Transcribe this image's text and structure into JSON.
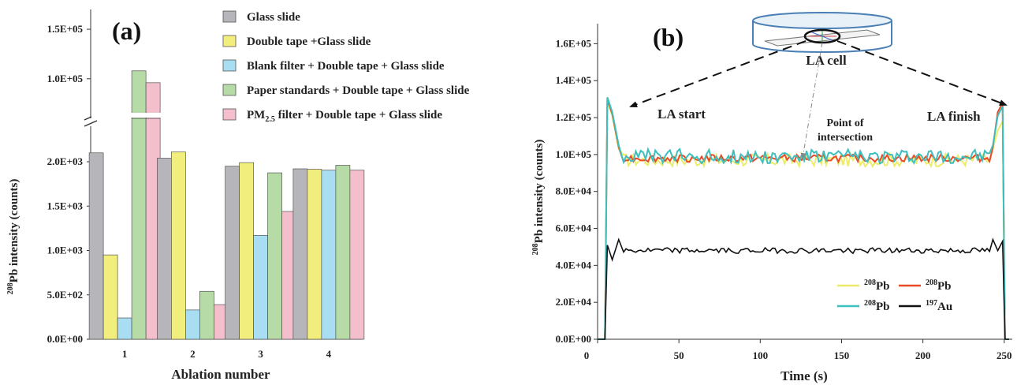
{
  "chart_data": [
    {
      "type": "bar",
      "panel_label": "(a)",
      "xlabel": "Ablation  number",
      "ylabel_sup": "208",
      "ylabel_main": "Pb intensity (counts)",
      "categories": [
        "1",
        "2",
        "3",
        "4"
      ],
      "axis_break": true,
      "lower_axis": {
        "ylim": [
          0,
          2400
        ],
        "ticks": [
          0,
          500,
          1000,
          1500,
          2000
        ],
        "tick_labels": [
          "0.0E+00",
          "5.0E+02",
          "1.0E+03",
          "1.5E+03",
          "2.0E+03"
        ]
      },
      "upper_axis": {
        "ylim": [
          60000,
          170000
        ],
        "ticks": [
          100000,
          150000
        ],
        "tick_labels": [
          "1.0E+05",
          "1.5E+05"
        ]
      },
      "series": [
        {
          "name": "Glass slide",
          "color": "#b5b5ba",
          "values": [
            2100,
            2040,
            1950,
            1920
          ]
        },
        {
          "name": "Double tape +Glass slide",
          "color": "#f2ee7e",
          "values": [
            950,
            2110,
            1990,
            1915
          ]
        },
        {
          "name": "Blank filter + Double tape + Glass slide",
          "color": "#a9ddf1",
          "values": [
            240,
            330,
            1170,
            1905
          ]
        },
        {
          "name": "Paper standards + Double tape + Glass slide",
          "color": "#b6dba6",
          "values": [
            108000,
            540,
            1875,
            1960
          ]
        },
        {
          "name_main": "PM",
          "name_sub": "2.5",
          "name_rest": " filter + Double tape + Glass slide",
          "color": "#f4bfcc",
          "values": [
            96000,
            390,
            1440,
            1905
          ]
        }
      ]
    },
    {
      "type": "line",
      "panel_label": "(b)",
      "xlabel": "Time (s)",
      "ylabel_sup": "208",
      "ylabel_main": "Pb intensity (counts)",
      "xlim": [
        0,
        253
      ],
      "ylim": [
        0,
        170000
      ],
      "x_ticks": [
        0,
        50,
        100,
        150,
        200,
        250
      ],
      "y_ticks": [
        0,
        20000,
        40000,
        60000,
        80000,
        100000,
        120000,
        140000,
        160000
      ],
      "y_tick_labels": [
        "0.0E+00",
        "2.0E+04",
        "4.0E+04",
        "6.0E+04",
        "8.0E+04",
        "1.0E+05",
        "1.2E+05",
        "1.4E+05",
        "1.6E+05"
      ],
      "series": [
        {
          "sup": "208",
          "main": "Pb",
          "color": "#ecec6a",
          "plateau": 97000,
          "noise": 3500,
          "start": 6,
          "end": 249,
          "peak_left": 129000,
          "peak_right": 118000
        },
        {
          "sup": "208",
          "main": "Pb",
          "color": "#e94a27",
          "plateau": 98000,
          "noise": 2000,
          "start": 6,
          "end": 249,
          "peak_left": 130000,
          "peak_right": 128000
        },
        {
          "sup": "208",
          "main": "Pb",
          "color": "#3dbfbf",
          "plateau": 99000,
          "noise": 4000,
          "start": 6,
          "end": 249,
          "peak_left": 131000,
          "peak_right": 126000
        },
        {
          "sup": "197",
          "main": "Au",
          "color": "#111111",
          "plateau": 48000,
          "noise": 1500,
          "start": 6,
          "end": 249,
          "peak_left": 51000,
          "peak_right": 53000
        }
      ],
      "annotations": {
        "la_cell": "LA cell",
        "la_start": "LA start",
        "la_finish": "LA finish",
        "point_of": "Point of",
        "intersection": "intersection"
      }
    }
  ]
}
